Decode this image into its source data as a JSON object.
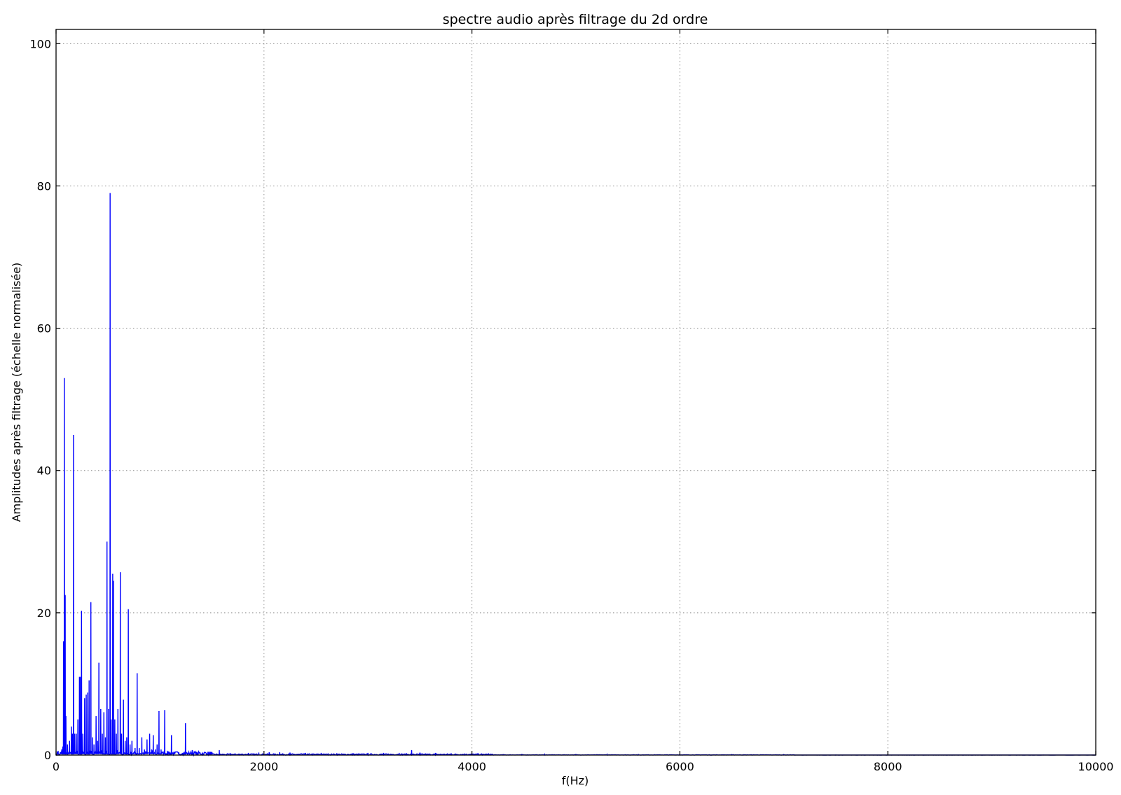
{
  "chart_data": {
    "type": "line",
    "title": "spectre audio après filtrage du 2d ordre",
    "xlabel": "f(Hz)",
    "ylabel": "Amplitudes après filtrage (échelle normalisée)",
    "xlim": [
      0,
      10000
    ],
    "ylim": [
      0,
      102
    ],
    "xticks": [
      0,
      2000,
      4000,
      6000,
      8000,
      10000
    ],
    "yticks": [
      0,
      20,
      40,
      60,
      80,
      100
    ],
    "grid": true,
    "line_color": "#0000ff",
    "series": [
      {
        "peaks": [
          {
            "x": 20,
            "y": 0.6
          },
          {
            "x": 40,
            "y": 0.4
          },
          {
            "x": 55,
            "y": 0.8
          },
          {
            "x": 65,
            "y": 1.2
          },
          {
            "x": 72,
            "y": 16
          },
          {
            "x": 80,
            "y": 53
          },
          {
            "x": 88,
            "y": 22.5
          },
          {
            "x": 95,
            "y": 5.5
          },
          {
            "x": 110,
            "y": 1.5
          },
          {
            "x": 130,
            "y": 2
          },
          {
            "x": 148,
            "y": 4
          },
          {
            "x": 158,
            "y": 3
          },
          {
            "x": 168,
            "y": 45
          },
          {
            "x": 180,
            "y": 3
          },
          {
            "x": 195,
            "y": 3
          },
          {
            "x": 210,
            "y": 5
          },
          {
            "x": 225,
            "y": 11
          },
          {
            "x": 233,
            "y": 11
          },
          {
            "x": 245,
            "y": 20.3
          },
          {
            "x": 258,
            "y": 3
          },
          {
            "x": 275,
            "y": 8
          },
          {
            "x": 290,
            "y": 8.5
          },
          {
            "x": 305,
            "y": 8.8
          },
          {
            "x": 318,
            "y": 10.5
          },
          {
            "x": 335,
            "y": 21.5
          },
          {
            "x": 350,
            "y": 2.5
          },
          {
            "x": 365,
            "y": 1.5
          },
          {
            "x": 385,
            "y": 5.5
          },
          {
            "x": 400,
            "y": 2
          },
          {
            "x": 412,
            "y": 13
          },
          {
            "x": 430,
            "y": 6.5
          },
          {
            "x": 445,
            "y": 3
          },
          {
            "x": 460,
            "y": 6
          },
          {
            "x": 475,
            "y": 2.5
          },
          {
            "x": 490,
            "y": 30
          },
          {
            "x": 505,
            "y": 6.5
          },
          {
            "x": 520,
            "y": 79
          },
          {
            "x": 530,
            "y": 5
          },
          {
            "x": 545,
            "y": 25.5
          },
          {
            "x": 552,
            "y": 24.5
          },
          {
            "x": 565,
            "y": 5
          },
          {
            "x": 580,
            "y": 3
          },
          {
            "x": 595,
            "y": 6.5
          },
          {
            "x": 618,
            "y": 25.7
          },
          {
            "x": 630,
            "y": 3
          },
          {
            "x": 648,
            "y": 7.8
          },
          {
            "x": 665,
            "y": 2
          },
          {
            "x": 680,
            "y": 2.5
          },
          {
            "x": 695,
            "y": 20.5
          },
          {
            "x": 712,
            "y": 1.5
          },
          {
            "x": 730,
            "y": 2
          },
          {
            "x": 760,
            "y": 1
          },
          {
            "x": 780,
            "y": 11.5
          },
          {
            "x": 800,
            "y": 1
          },
          {
            "x": 825,
            "y": 2.5
          },
          {
            "x": 850,
            "y": 0.8
          },
          {
            "x": 875,
            "y": 2.2
          },
          {
            "x": 900,
            "y": 3
          },
          {
            "x": 920,
            "y": 0.8
          },
          {
            "x": 935,
            "y": 2.8
          },
          {
            "x": 955,
            "y": 0.8
          },
          {
            "x": 972,
            "y": 1.5
          },
          {
            "x": 990,
            "y": 6.2
          },
          {
            "x": 1010,
            "y": 0.8
          },
          {
            "x": 1045,
            "y": 6.3
          },
          {
            "x": 1070,
            "y": 0.6
          },
          {
            "x": 1110,
            "y": 2.8
          },
          {
            "x": 1140,
            "y": 0.4
          },
          {
            "x": 1180,
            "y": 0.4
          },
          {
            "x": 1215,
            "y": 0.3
          },
          {
            "x": 1245,
            "y": 4.5
          },
          {
            "x": 1270,
            "y": 0.3
          },
          {
            "x": 1310,
            "y": 0.7
          },
          {
            "x": 1360,
            "y": 0.2
          },
          {
            "x": 1420,
            "y": 0.15
          },
          {
            "x": 1480,
            "y": 0.2
          },
          {
            "x": 1570,
            "y": 0.7
          },
          {
            "x": 1640,
            "y": 0.15
          },
          {
            "x": 1680,
            "y": 0.25
          },
          {
            "x": 1760,
            "y": 0.2
          },
          {
            "x": 1850,
            "y": 0.3
          },
          {
            "x": 1950,
            "y": 0.35
          },
          {
            "x": 2050,
            "y": 0.4
          },
          {
            "x": 2150,
            "y": 0.4
          },
          {
            "x": 2250,
            "y": 0.35
          },
          {
            "x": 2400,
            "y": 0.3
          },
          {
            "x": 2550,
            "y": 0.3
          },
          {
            "x": 2700,
            "y": 0.25
          },
          {
            "x": 2850,
            "y": 0.25
          },
          {
            "x": 3000,
            "y": 0.3
          },
          {
            "x": 3150,
            "y": 0.3
          },
          {
            "x": 3300,
            "y": 0.3
          },
          {
            "x": 3420,
            "y": 0.7
          },
          {
            "x": 3500,
            "y": 0.35
          },
          {
            "x": 3650,
            "y": 0.3
          },
          {
            "x": 3800,
            "y": 0.25
          },
          {
            "x": 3950,
            "y": 0.2
          },
          {
            "x": 4100,
            "y": 0.15
          },
          {
            "x": 4300,
            "y": 0.12
          },
          {
            "x": 4480,
            "y": 0.15
          },
          {
            "x": 4700,
            "y": 0.08
          },
          {
            "x": 5000,
            "y": 0.06
          },
          {
            "x": 5300,
            "y": 0.08
          },
          {
            "x": 5600,
            "y": 0.06
          },
          {
            "x": 6000,
            "y": 0.05
          },
          {
            "x": 6500,
            "y": 0.05
          },
          {
            "x": 7000,
            "y": 0.05
          },
          {
            "x": 7500,
            "y": 0.02
          },
          {
            "x": 8500,
            "y": 0.01
          },
          {
            "x": 9500,
            "y": 0.01
          }
        ]
      }
    ]
  }
}
